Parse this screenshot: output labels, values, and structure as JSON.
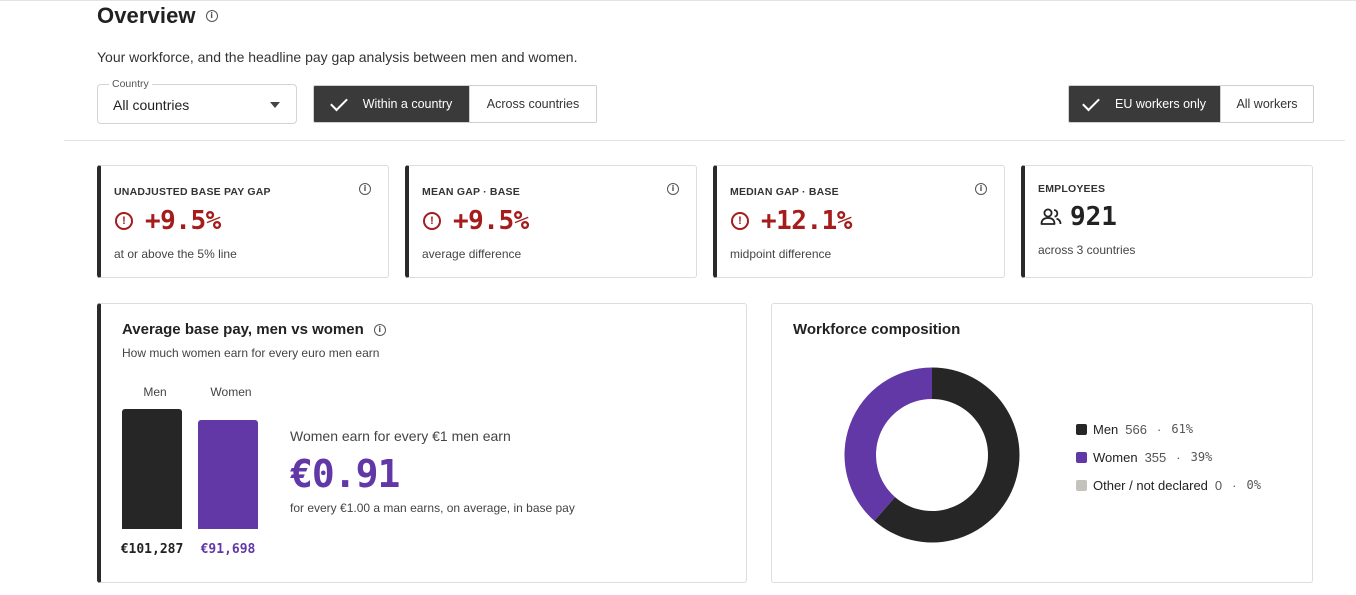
{
  "header": {
    "title": "Overview",
    "subtitle": "Your workforce, and the headline pay gap analysis between men and women."
  },
  "filters": {
    "country_label": "Country",
    "country_value": "All countries",
    "scope_options": [
      "Within a country",
      "Across countries"
    ],
    "scope_selected": "Within a country",
    "worker_options": [
      "EU workers only",
      "All workers"
    ],
    "worker_selected": "EU workers only"
  },
  "stats": [
    {
      "label": "UNADJUSTED BASE PAY GAP",
      "value": "+9.5%",
      "note": "at or above the 5% line",
      "icon": "warning-icon"
    },
    {
      "label": "MEAN GAP · BASE",
      "value": "+9.5%",
      "note": "average difference",
      "icon": "warning-icon"
    },
    {
      "label": "MEDIAN GAP · BASE",
      "value": "+12.1%",
      "note": "midpoint difference",
      "icon": "warning-icon"
    }
  ],
  "employees": {
    "label": "EMPLOYEES",
    "value": "921",
    "note": "across 3 countries",
    "icon": "people-icon"
  },
  "pay_panel": {
    "title": "Average base pay, men vs women",
    "subtitle": "How much women earn for every euro men earn",
    "men_label": "Men",
    "women_label": "Women",
    "men_value_text": "€101,287",
    "women_value_text": "€91,698",
    "ratio_caption": "Women earn for every €1 men earn",
    "ratio_value": "€0.91",
    "ratio_note": "for every €1.00 a man earns, on average, in base pay"
  },
  "chart_data": [
    {
      "type": "bar",
      "categories": [
        "Men",
        "Women"
      ],
      "values": [
        101287,
        91698
      ],
      "title": "Average base pay, men vs women",
      "colors": [
        "#262626",
        "#6238a6"
      ]
    },
    {
      "type": "pie",
      "title": "Workforce composition",
      "categories": [
        "Men",
        "Women",
        "Other / not declared"
      ],
      "values": [
        566,
        355,
        0
      ],
      "colors": [
        "#262626",
        "#6238a6",
        "#c4c2bd"
      ]
    }
  ],
  "composition": {
    "title": "Workforce composition",
    "legend": [
      {
        "label": "Men",
        "count": "566",
        "pct": "61%",
        "color": "#262626"
      },
      {
        "label": "Women",
        "count": "355",
        "pct": "39%",
        "color": "#6238a6"
      },
      {
        "label": "Other / not declared",
        "count": "0",
        "pct": "0%",
        "color": "#c4c2bd"
      }
    ]
  },
  "colors": {
    "alert": "#a51c1c",
    "accent": "#6238a6",
    "dark": "#262626"
  }
}
